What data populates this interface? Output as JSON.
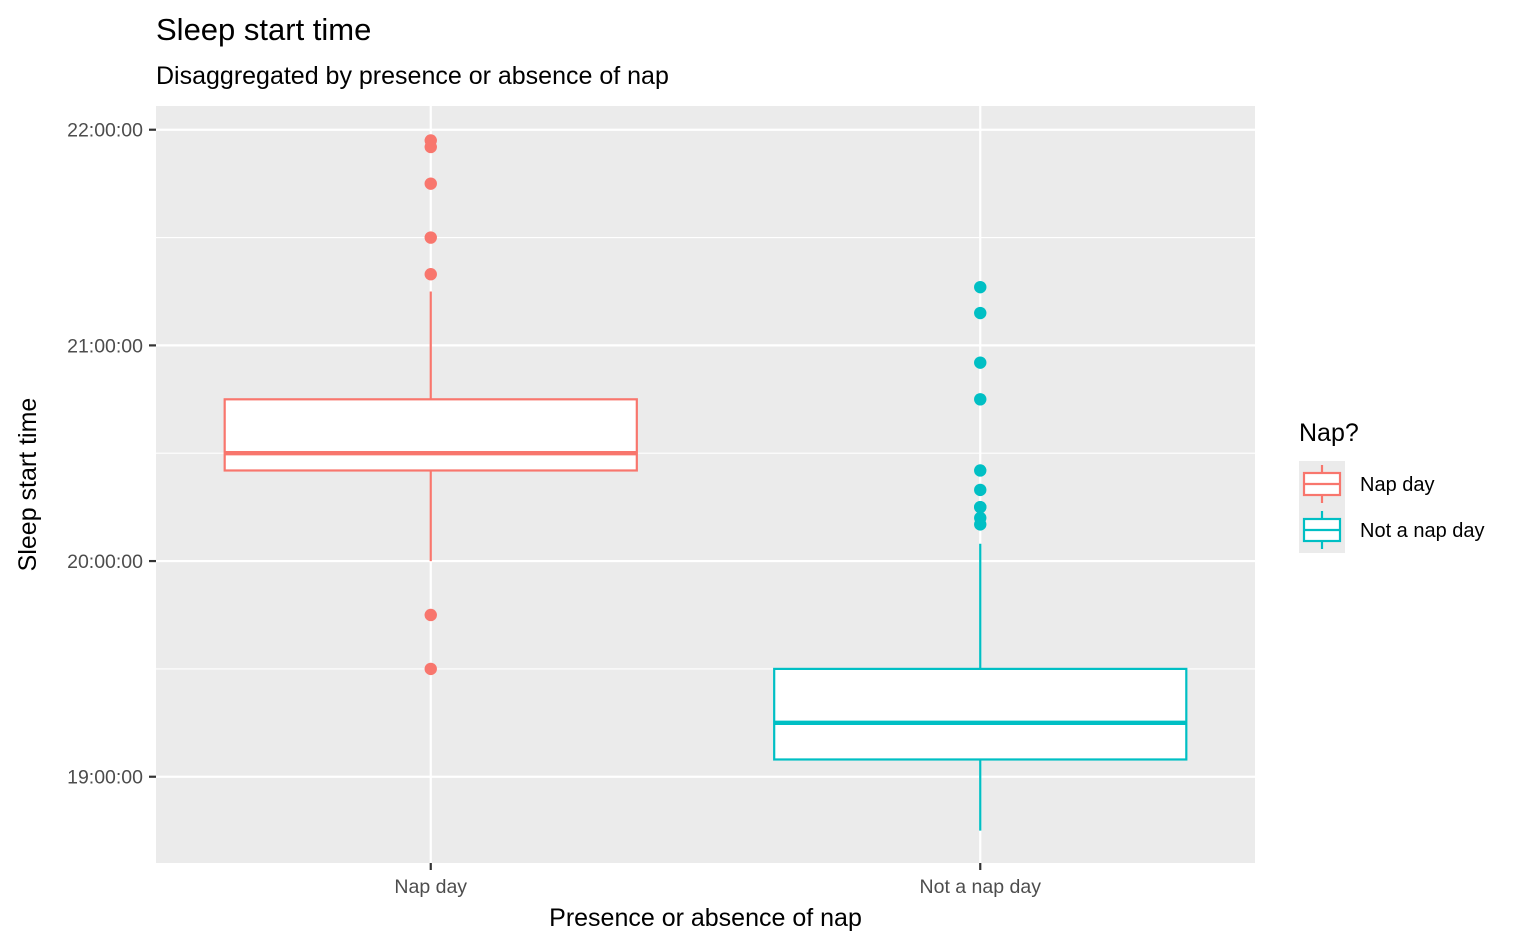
{
  "chart_data": {
    "type": "boxplot",
    "title": "Sleep start time",
    "subtitle": "Disaggregated by presence or absence of nap",
    "xlabel": "Presence or absence of nap",
    "ylabel": "Sleep start time",
    "categories": [
      "Nap day",
      "Not a nap day"
    ],
    "y_unit": "time of day (hours)",
    "ylim": [
      18.6,
      22.11
    ],
    "yticks": [
      19,
      20,
      21,
      22
    ],
    "ytick_labels": [
      "19:00:00",
      "20:00:00",
      "21:00:00",
      "22:00:00"
    ],
    "grid": true,
    "legend": {
      "title": "Nap?",
      "placement": "right",
      "entries": [
        "Nap day",
        "Not a nap day"
      ]
    },
    "series": [
      {
        "name": "Nap day",
        "color": "#f8766d",
        "whisker_low": 20.0,
        "q1": 20.42,
        "median": 20.5,
        "q3": 20.75,
        "whisker_high": 21.25,
        "outliers": [
          21.95,
          21.92,
          21.75,
          21.5,
          21.33,
          19.75,
          19.5
        ]
      },
      {
        "name": "Not a nap day",
        "color": "#00bfc4",
        "whisker_low": 18.75,
        "q1": 19.08,
        "median": 19.25,
        "q3": 19.5,
        "whisker_high": 20.08,
        "outliers": [
          21.27,
          21.15,
          20.92,
          20.75,
          20.42,
          20.33,
          20.25,
          20.25,
          20.2,
          20.17
        ]
      }
    ]
  }
}
